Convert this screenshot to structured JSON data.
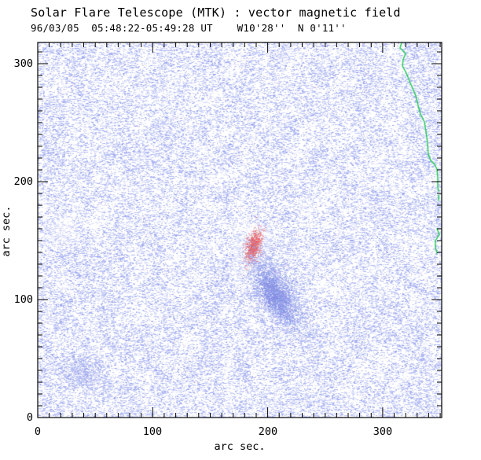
{
  "header": {
    "title": "Solar Flare Telescope (MTK) : vector magnetic field",
    "subtitle": "96/03/05  05:48:22-05:49:28 UT    W10'28''  N 0'11''"
  },
  "axes": {
    "x": {
      "label": "arc sec.",
      "ticks": [
        "0",
        "100",
        "200",
        "300"
      ],
      "tick_values": [
        0,
        100,
        200,
        300
      ],
      "minor_step": 10,
      "max_minor": 350,
      "range": [
        0,
        351
      ]
    },
    "y": {
      "label": "arc sec.",
      "ticks": [
        "0",
        "100",
        "200",
        "300"
      ],
      "tick_values": [
        0,
        100,
        200,
        300
      ],
      "minor_step": 10,
      "max_minor": 310,
      "range": [
        0,
        318
      ]
    }
  },
  "colors": {
    "background": "#ffffff",
    "frame": "#000000",
    "noise_blue_light": "#d0d5fa",
    "noise_blue_mid": "#a8aff0",
    "noise_blue_dark": "#8790e4",
    "positive_red": "#ec7070",
    "limb_green": "#19c94e"
  },
  "chart_data": {
    "type": "heatmap",
    "title": "Solar Flare Telescope (MTK) : vector magnetic field",
    "subtitle": "96/03/05  05:48:22-05:49:28 UT    W10'28''  N 0'11''",
    "xlabel": "arc sec.",
    "ylabel": "arc sec.",
    "xlim": [
      0,
      351
    ],
    "ylim": [
      0,
      318
    ],
    "grid": false,
    "legend": false,
    "description": "Vector magnetogram: speckled weak-field blue noise over full disk area; compact positive (red) polarity patch near (187,145) arc sec surrounded by a white low-signal halo; elongated negative (dark blue) polarity sunspot region centered near (208,106) arc sec tilted toward lower-right; faint dark blotch near (39,36); wiggly green solar limb trace near the right edge around x=314-349 arc sec.",
    "features": [
      {
        "kind": "white_patch",
        "name": "halo-around-red-patch",
        "x": 186,
        "y": 148,
        "radius_arcsec": 21,
        "alpha": 0.92
      },
      {
        "kind": "white_patch",
        "name": "white-streak-lower-left-of-patch",
        "x": 179,
        "y": 127,
        "radius_arcsec": 14,
        "alpha": 0.6
      },
      {
        "kind": "white_patch",
        "name": "faint-white-region-left",
        "x": 22,
        "y": 158,
        "radius_arcsec": 17,
        "alpha": 0.45
      },
      {
        "kind": "speckle_cloud",
        "name": "positive-polarity-patch",
        "x": 187.5,
        "y": 145,
        "sigma_x": 3.4,
        "sigma_y": 8.0,
        "tilt_deg": 14,
        "count": 850,
        "red_range": [
          224,
          246
        ],
        "green_range": [
          96,
          152
        ],
        "blue_range": [
          96,
          152
        ],
        "alpha_min": 0.35,
        "alpha_max": 0.85
      },
      {
        "kind": "speckle_cloud",
        "name": "positive-polarity-core",
        "x": 187.5,
        "y": 145,
        "sigma_x": 2.0,
        "sigma_y": 4.6,
        "tilt_deg": 14,
        "count": 300,
        "red_range": [
          226,
          240
        ],
        "green_range": [
          78,
          110
        ],
        "blue_range": [
          80,
          112
        ],
        "alpha_min": 0.5,
        "alpha_max": 0.9
      },
      {
        "kind": "speckle_cloud",
        "name": "negative-polarity-region",
        "x": 208,
        "y": 106,
        "sigma_x": 9.0,
        "sigma_y": 24.5,
        "tilt_deg": -31,
        "count": 4300,
        "red_range": [
          138,
          178
        ],
        "green_range": [
          148,
          188
        ],
        "blue_range": [
          228,
          248
        ],
        "alpha_min": 0.28,
        "alpha_max": 0.75
      },
      {
        "kind": "speckle_cloud",
        "name": "negative-polarity-core",
        "x": 206,
        "y": 104,
        "sigma_x": 5.5,
        "sigma_y": 12.0,
        "tilt_deg": -31,
        "count": 1500,
        "red_range": [
          118,
          148
        ],
        "green_range": [
          130,
          160
        ],
        "blue_range": [
          216,
          240
        ],
        "alpha_min": 0.38,
        "alpha_max": 0.8
      },
      {
        "kind": "speckle_cloud",
        "name": "faint-dark-blotch-lower-left",
        "x": 39.5,
        "y": 36.5,
        "sigma_x": 9.5,
        "sigma_y": 7.0,
        "tilt_deg": 0,
        "count": 950,
        "red_range": [
          140,
          180
        ],
        "green_range": [
          150,
          190
        ],
        "blue_range": [
          228,
          248
        ],
        "alpha_min": 0.25,
        "alpha_max": 0.65
      }
    ],
    "limb_line_arcsec": [
      [
        [
          316.5,
          318
        ],
        [
          315.1,
          313.3
        ],
        [
          319.9,
          308.7
        ],
        [
          317.8,
          303.3
        ],
        [
          317.2,
          298
        ],
        [
          320.6,
          292
        ],
        [
          323.3,
          285.3
        ],
        [
          326,
          279.3
        ],
        [
          328.8,
          272.7
        ],
        [
          330.8,
          264.7
        ],
        [
          332.9,
          257.3
        ],
        [
          336.3,
          250.7
        ],
        [
          337.7,
          242
        ],
        [
          339,
          232.7
        ],
        [
          339.7,
          223.3
        ],
        [
          341.8,
          218
        ],
        [
          345.2,
          214.7
        ],
        [
          347.2,
          210.7
        ],
        [
          347.9,
          203.3
        ],
        [
          347.9,
          195.3
        ],
        [
          348.6,
          192
        ]
      ],
      [
        [
          348.6,
          188.7
        ],
        [
          348.6,
          184
        ]
      ],
      [
        [
          347.2,
          160
        ],
        [
          349.3,
          155.3
        ],
        [
          345.9,
          150
        ],
        [
          345.9,
          144.7
        ],
        [
          347.2,
          139.3
        ]
      ]
    ]
  },
  "render": {
    "seed": 1234567,
    "base_speckles": 98000,
    "pink_speckles": 230
  }
}
